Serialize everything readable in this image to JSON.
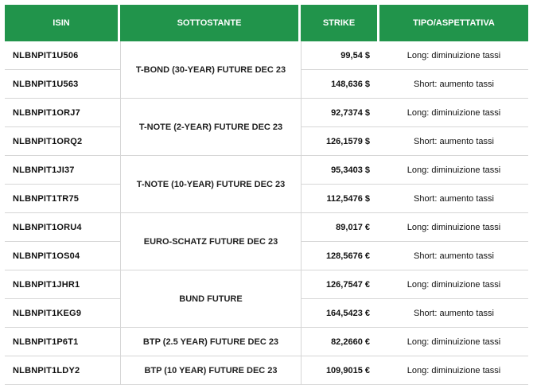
{
  "headers": {
    "isin": "ISIN",
    "sottostante": "SOTTOSTANTE",
    "strike": "STRIKE",
    "tipo": "TIPO/ASPETTATIVA"
  },
  "groups": [
    {
      "sottostante": "T-BOND (30-YEAR) FUTURE DEC 23",
      "rows": [
        {
          "isin": "NLBNPIT1U506",
          "strike": "99,54 $",
          "tipo": "Long: diminuizione tassi"
        },
        {
          "isin": "NLBNPIT1U563",
          "strike": "148,636 $",
          "tipo": "Short: aumento tassi"
        }
      ]
    },
    {
      "sottostante": "T-NOTE (2-YEAR) FUTURE DEC 23",
      "rows": [
        {
          "isin": "NLBNPIT1ORJ7",
          "strike": "92,7374 $",
          "tipo": "Long: diminuizione tassi"
        },
        {
          "isin": "NLBNPIT1ORQ2",
          "strike": "126,1579 $",
          "tipo": "Short: aumento tassi"
        }
      ]
    },
    {
      "sottostante": "T-NOTE (10-YEAR) FUTURE DEC 23",
      "rows": [
        {
          "isin": "NLBNPIT1JI37",
          "strike": "95,3403 $",
          "tipo": "Long: diminuizione tassi"
        },
        {
          "isin": "NLBNPIT1TR75",
          "strike": "112,5476 $",
          "tipo": "Short: aumento tassi"
        }
      ]
    },
    {
      "sottostante": "EURO-SCHATZ FUTURE DEC 23",
      "rows": [
        {
          "isin": "NLBNPIT1ORU4",
          "strike": "89,017 €",
          "tipo": "Long: diminuizione tassi"
        },
        {
          "isin": "NLBNPIT1OS04",
          "strike": "128,5676 €",
          "tipo": "Short: aumento tassi"
        }
      ]
    },
    {
      "sottostante": "BUND FUTURE",
      "rows": [
        {
          "isin": "NLBNPIT1JHR1",
          "strike": "126,7547 €",
          "tipo": "Long: diminuizione tassi"
        },
        {
          "isin": "NLBNPIT1KEG9",
          "strike": "164,5423 €",
          "tipo": "Short: aumento tassi"
        }
      ]
    },
    {
      "sottostante": "BTP (2.5 YEAR) FUTURE DEC 23",
      "rows": [
        {
          "isin": "NLBNPIT1P6T1",
          "strike": "82,2660 €",
          "tipo": "Long: diminuizione tassi"
        }
      ]
    },
    {
      "sottostante": "BTP (10 YEAR) FUTURE DEC 23",
      "rows": [
        {
          "isin": "NLBNPIT1LDY2",
          "strike": "109,9015 €",
          "tipo": "Long: diminuizione tassi"
        }
      ]
    }
  ]
}
